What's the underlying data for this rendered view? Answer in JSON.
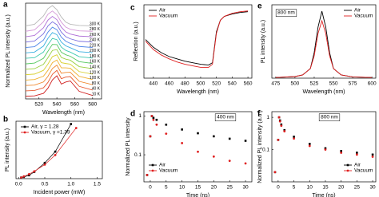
{
  "chart_data": [
    {
      "panel": "a",
      "type": "line",
      "x_label": "Wavelength (nm)",
      "y_label": "Normalized PL intensity (a.u.)",
      "x": [
        505,
        515,
        525,
        530,
        535,
        540,
        545,
        550,
        555,
        565,
        580
      ],
      "xlim": [
        505,
        590
      ],
      "xticks": [
        520,
        540,
        560,
        580
      ],
      "legend": "labels",
      "series": [
        {
          "name": "300 K",
          "color": "#b8b8b8",
          "values": [
            0.02,
            0.1,
            0.5,
            0.85,
            1.0,
            0.8,
            0.45,
            0.2,
            0.1,
            0.04,
            0.02
          ]
        },
        {
          "name": "280 K",
          "color": "#d59ad8",
          "values": [
            0.02,
            0.09,
            0.48,
            0.84,
            1.0,
            0.82,
            0.46,
            0.22,
            0.12,
            0.04,
            0.02
          ]
        },
        {
          "name": "260 K",
          "color": "#b070d8",
          "values": [
            0.02,
            0.08,
            0.45,
            0.82,
            1.0,
            0.84,
            0.48,
            0.25,
            0.15,
            0.05,
            0.02
          ]
        },
        {
          "name": "240 K",
          "color": "#7a6ee0",
          "values": [
            0.02,
            0.07,
            0.42,
            0.8,
            1.0,
            0.86,
            0.5,
            0.28,
            0.18,
            0.06,
            0.02
          ]
        },
        {
          "name": "220 K",
          "color": "#4f86e8",
          "values": [
            0.02,
            0.06,
            0.38,
            0.76,
            1.0,
            0.88,
            0.52,
            0.32,
            0.22,
            0.07,
            0.02
          ]
        },
        {
          "name": "200 K",
          "color": "#3bb0e0",
          "values": [
            0.02,
            0.06,
            0.35,
            0.72,
            1.0,
            0.9,
            0.54,
            0.36,
            0.27,
            0.08,
            0.03
          ]
        },
        {
          "name": "180 K",
          "color": "#3cc8b0",
          "values": [
            0.02,
            0.05,
            0.32,
            0.68,
            0.98,
            0.92,
            0.56,
            0.4,
            0.32,
            0.1,
            0.03
          ]
        },
        {
          "name": "160 K",
          "color": "#55c860",
          "values": [
            0.01,
            0.05,
            0.28,
            0.62,
            0.95,
            0.94,
            0.57,
            0.45,
            0.38,
            0.12,
            0.03
          ]
        },
        {
          "name": "140 K",
          "color": "#9ad040",
          "values": [
            0.01,
            0.04,
            0.25,
            0.57,
            0.92,
            0.96,
            0.58,
            0.5,
            0.45,
            0.14,
            0.04
          ]
        },
        {
          "name": "120 K",
          "color": "#d8d030",
          "values": [
            0.01,
            0.04,
            0.22,
            0.52,
            0.88,
            0.97,
            0.59,
            0.55,
            0.52,
            0.16,
            0.04
          ]
        },
        {
          "name": "100 K",
          "color": "#f0b030",
          "values": [
            0.01,
            0.04,
            0.2,
            0.48,
            0.85,
            0.98,
            0.6,
            0.6,
            0.58,
            0.19,
            0.04
          ]
        },
        {
          "name": "80 K",
          "color": "#f08a30",
          "values": [
            0.01,
            0.03,
            0.18,
            0.45,
            0.83,
            0.99,
            0.6,
            0.64,
            0.65,
            0.21,
            0.05
          ]
        },
        {
          "name": "40 K",
          "color": "#e85a30",
          "values": [
            0.01,
            0.03,
            0.16,
            0.42,
            0.81,
            1.0,
            0.6,
            0.68,
            0.7,
            0.23,
            0.05
          ]
        },
        {
          "name": "10 K",
          "color": "#d02020",
          "values": [
            0.01,
            0.03,
            0.15,
            0.4,
            0.8,
            1.0,
            0.6,
            0.7,
            0.75,
            0.25,
            0.05
          ]
        }
      ]
    },
    {
      "panel": "b",
      "type": "line",
      "markers": true,
      "x_label": "Incident power (mW)",
      "y_label": "PL intensity (a.u.)",
      "xlim": [
        -0.05,
        1.6
      ],
      "ylim": [
        0,
        1.02
      ],
      "xticks": [
        {
          "value": 0,
          "label": "0.0"
        },
        0.5,
        {
          "value": 1,
          "label": "1.0"
        },
        1.5
      ],
      "legend": "upper left",
      "series": [
        {
          "name": "Air, γ = 1.28",
          "color": "#000000",
          "marker": "square",
          "x": [
            0.05,
            0.1,
            0.2,
            0.3,
            0.5,
            0.7,
            1.0
          ],
          "values": [
            0.02,
            0.03,
            0.06,
            0.12,
            0.28,
            0.48,
            0.97
          ]
        },
        {
          "name": "Vacuum, γ =1.39",
          "color": "#e02020",
          "marker": "circle",
          "x": [
            0.05,
            0.1,
            0.2,
            0.3,
            0.5,
            0.7,
            1.1
          ],
          "values": [
            0.02,
            0.04,
            0.08,
            0.13,
            0.25,
            0.42,
            0.9
          ]
        }
      ]
    },
    {
      "panel": "c",
      "type": "line",
      "x_label": "Wavelength (nm)",
      "y_label": "Reflection (a.u.)",
      "x": [
        430,
        440,
        450,
        460,
        470,
        480,
        490,
        500,
        510,
        515,
        520,
        525,
        530,
        540,
        550,
        560
      ],
      "xlim": [
        428,
        565
      ],
      "ylim": [
        0.1,
        1.05
      ],
      "xticks": [
        440,
        460,
        480,
        500,
        520,
        540,
        560
      ],
      "legend": "upper left",
      "series": [
        {
          "name": "Air",
          "color": "#000000",
          "values": [
            0.6,
            0.5,
            0.43,
            0.38,
            0.35,
            0.32,
            0.3,
            0.28,
            0.27,
            0.3,
            0.7,
            0.85,
            0.9,
            0.93,
            0.95,
            0.96
          ]
        },
        {
          "name": "Vacuum",
          "color": "#e02020",
          "values": [
            0.58,
            0.47,
            0.4,
            0.35,
            0.31,
            0.28,
            0.26,
            0.24,
            0.24,
            0.28,
            0.68,
            0.85,
            0.9,
            0.94,
            0.96,
            0.97
          ]
        }
      ]
    },
    {
      "panel": "d",
      "type": "scatter",
      "x_label": "Time (ns)",
      "y_label": "Normalized PL intensity",
      "ylog": true,
      "annotation": "400 nm",
      "x": [
        -1,
        0,
        0.5,
        1,
        2,
        5,
        10,
        15,
        20,
        25,
        30
      ],
      "xlim": [
        -2,
        32
      ],
      "ylim": [
        0.02,
        1.3
      ],
      "xticks": [
        0,
        5,
        10,
        15,
        20,
        25,
        30
      ],
      "yticks": [
        0.1,
        1
      ],
      "legend": "lower left",
      "series": [
        {
          "name": "Air",
          "color": "#000000",
          "marker": "square",
          "values": [
            0.03,
            0.3,
            1,
            0.9,
            0.8,
            0.6,
            0.45,
            0.36,
            0.3,
            0.26,
            0.23
          ]
        },
        {
          "name": "Vacuum",
          "color": "#e02020",
          "marker": "circle",
          "values": [
            0.03,
            0.3,
            1,
            0.8,
            0.6,
            0.35,
            0.2,
            0.12,
            0.09,
            0.07,
            0.06
          ]
        }
      ]
    },
    {
      "panel": "e",
      "type": "line",
      "x_label": "Wavelength (nm)",
      "y_label": "PL intensity (a.u.)",
      "annotation": "800 nm",
      "x": [
        475,
        500,
        510,
        520,
        525,
        530,
        535,
        540,
        545,
        550,
        560,
        575,
        600
      ],
      "xlim": [
        470,
        605
      ],
      "ylim": [
        0,
        23
      ],
      "xticks": [
        475,
        500,
        525,
        550,
        575,
        600
      ],
      "legend": "upper right",
      "series": [
        {
          "name": "Air",
          "color": "#000000",
          "values": [
            0.2,
            0.5,
            1,
            3,
            8,
            16,
            21,
            16,
            8,
            3,
            1,
            0.4,
            0.2
          ]
        },
        {
          "name": "Vacuum",
          "color": "#e02020",
          "values": [
            0.2,
            0.5,
            1,
            3,
            7,
            14,
            18,
            14,
            7,
            3,
            1,
            0.4,
            0.2
          ]
        }
      ]
    },
    {
      "panel": "f",
      "type": "scatter",
      "x_label": "Time (ns)",
      "y_label": "Normalized PL intensity (a.u.)",
      "ylog": true,
      "annotation": "800 nm",
      "x": [
        -1,
        0,
        0.3,
        0.6,
        1,
        2,
        5,
        10,
        15,
        20,
        25,
        30
      ],
      "xlim": [
        -2,
        31
      ],
      "ylim": [
        0.01,
        1.5
      ],
      "xticks": [
        0,
        5,
        10,
        15,
        20,
        25,
        30
      ],
      "yticks": [
        0.1,
        1
      ],
      "legend": "lower right",
      "series": [
        {
          "name": "Air",
          "color": "#000000",
          "marker": "square",
          "values": [
            0.02,
            0.2,
            1,
            0.8,
            0.6,
            0.4,
            0.25,
            0.15,
            0.11,
            0.09,
            0.08,
            0.07
          ]
        },
        {
          "name": "Vacuum",
          "color": "#e02020",
          "marker": "circle",
          "values": [
            0.02,
            0.2,
            1,
            0.75,
            0.55,
            0.37,
            0.22,
            0.13,
            0.1,
            0.08,
            0.07,
            0.06
          ]
        }
      ]
    }
  ]
}
